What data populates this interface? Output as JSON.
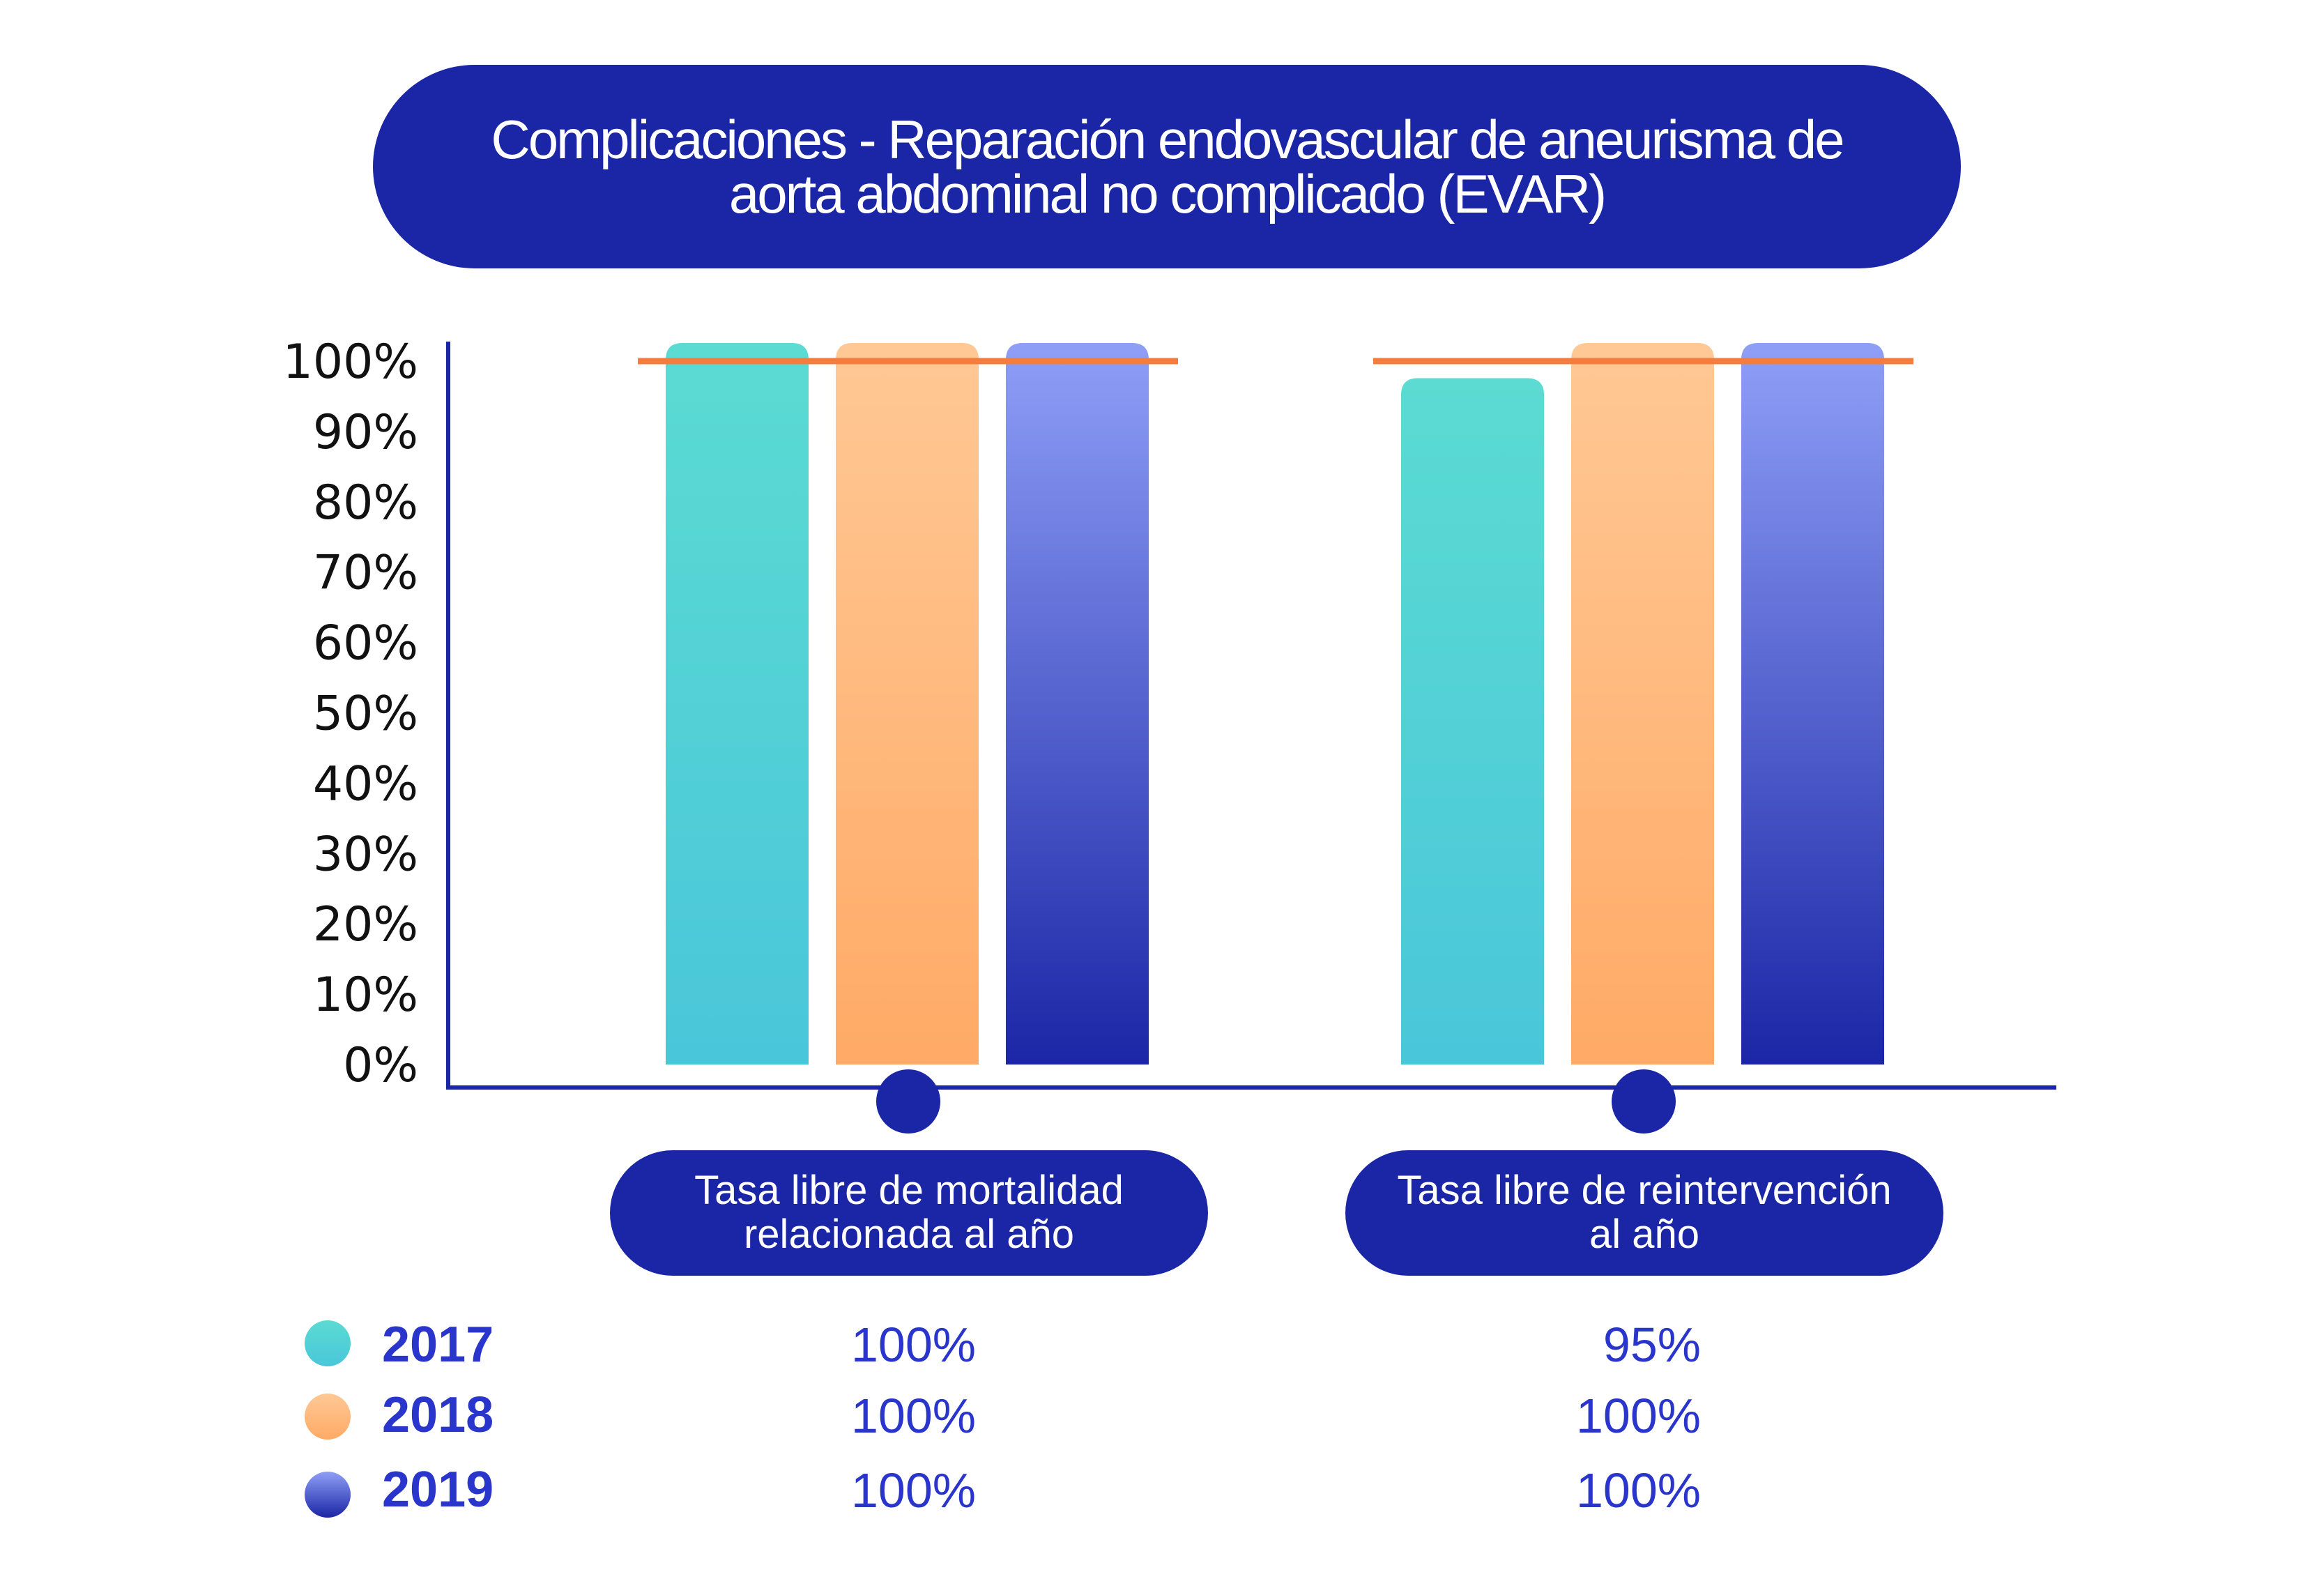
{
  "chart_data": {
    "type": "bar",
    "title": "Complicaciones - Reparación endovascular de aneurisma de aorta abdominal no complicado (EVAR)",
    "categories": [
      "Tasa libre de mortalidad relacionada al año",
      "Tasa libre de reintervención al año"
    ],
    "series": [
      {
        "name": "2017",
        "values": [
          100,
          95
        ]
      },
      {
        "name": "2018",
        "values": [
          100,
          100
        ]
      },
      {
        "name": "2019",
        "values": [
          100,
          100
        ]
      }
    ],
    "ylim": [
      0,
      100
    ],
    "yticks": [
      "0%",
      "10%",
      "20%",
      "30%",
      "40%",
      "50%",
      "60%",
      "70%",
      "80%",
      "90%",
      "100%"
    ],
    "reference_line": 100,
    "value_labels": [
      [
        "100%",
        "95%"
      ],
      [
        "100%",
        "100%"
      ],
      [
        "100%",
        "100%"
      ]
    ]
  },
  "colors": {
    "pill": "#1b26a6",
    "axis": "#1b26a6",
    "reference": "#f47c3c",
    "text_blue": "#2a35cc",
    "series_2017_top": "#5bdbd2",
    "series_2017_bottom": "#4ac6da",
    "series_2018_top": "#ffc895",
    "series_2018_bottom": "#ffaa66",
    "series_2019_top": "#8f9ff7",
    "series_2019_bottom": "#1b26a6"
  }
}
